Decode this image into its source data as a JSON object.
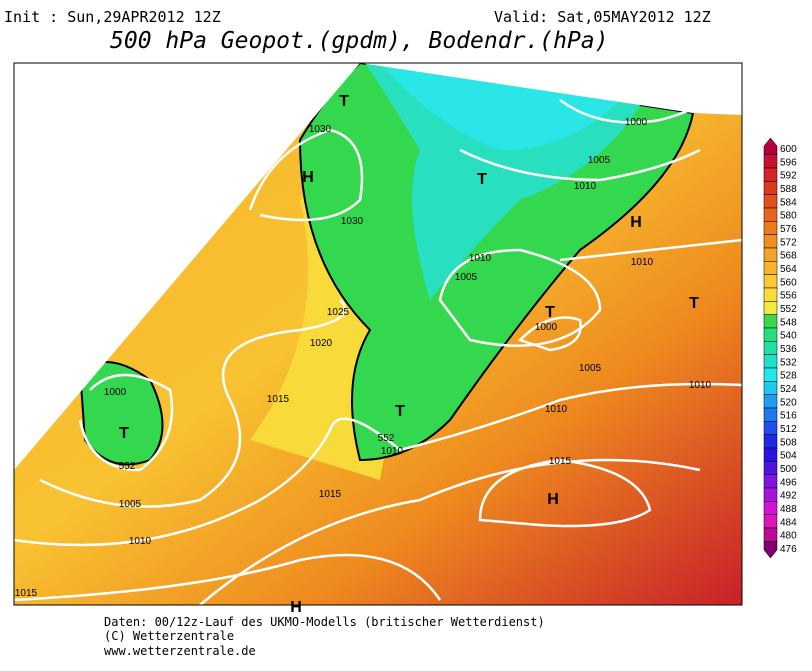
{
  "header": {
    "init": "Init : Sun,29APR2012 12Z",
    "valid": "Valid: Sat,05MAY2012 12Z",
    "title": "500 hPa Geopot.(gpdm), Bodendr.(hPa)"
  },
  "colorbar": {
    "labels": [
      600,
      596,
      592,
      588,
      584,
      580,
      576,
      572,
      568,
      564,
      560,
      556,
      552,
      548,
      540,
      536,
      532,
      528,
      524,
      520,
      516,
      512,
      508,
      504,
      500,
      496,
      492,
      488,
      484,
      480,
      476
    ],
    "colors": [
      "#b4003c",
      "#c8102f",
      "#d42626",
      "#dc3a1e",
      "#e2501c",
      "#e8641a",
      "#ee7a1a",
      "#f28e1e",
      "#f6a224",
      "#f8b42a",
      "#fac832",
      "#fadc3a",
      "#f2ea40",
      "#3cd84a",
      "#22e07a",
      "#20e0a8",
      "#1ee0cc",
      "#1ee8e8",
      "#1ec8f0",
      "#1ea0f0",
      "#1e78f0",
      "#1e50f0",
      "#1e28e8",
      "#2814e0",
      "#5014e0",
      "#8014e0",
      "#a814e0",
      "#d014d8",
      "#e014b8",
      "#c00898",
      "#800070"
    ]
  },
  "map": {
    "isobar_labels": [
      "1030",
      "1030",
      "1025",
      "1020",
      "1015",
      "1000",
      "552",
      "1005",
      "1010",
      "1015",
      "1015",
      "1010",
      "552",
      "1000",
      "1005",
      "1010",
      "1010",
      "1010",
      "1005",
      "1000",
      "1005",
      "1010",
      "1010",
      "1015"
    ],
    "centers": [
      "H",
      "H",
      "H",
      "H",
      "T",
      "T",
      "T",
      "T",
      "T",
      "T"
    ]
  },
  "footer": {
    "lines": [
      "Daten: 00/12z-Lauf des UKMO-Modells (britischer Wetterdienst)",
      "(C) Wetterzentrale",
      "www.wetterzentrale.de"
    ]
  }
}
